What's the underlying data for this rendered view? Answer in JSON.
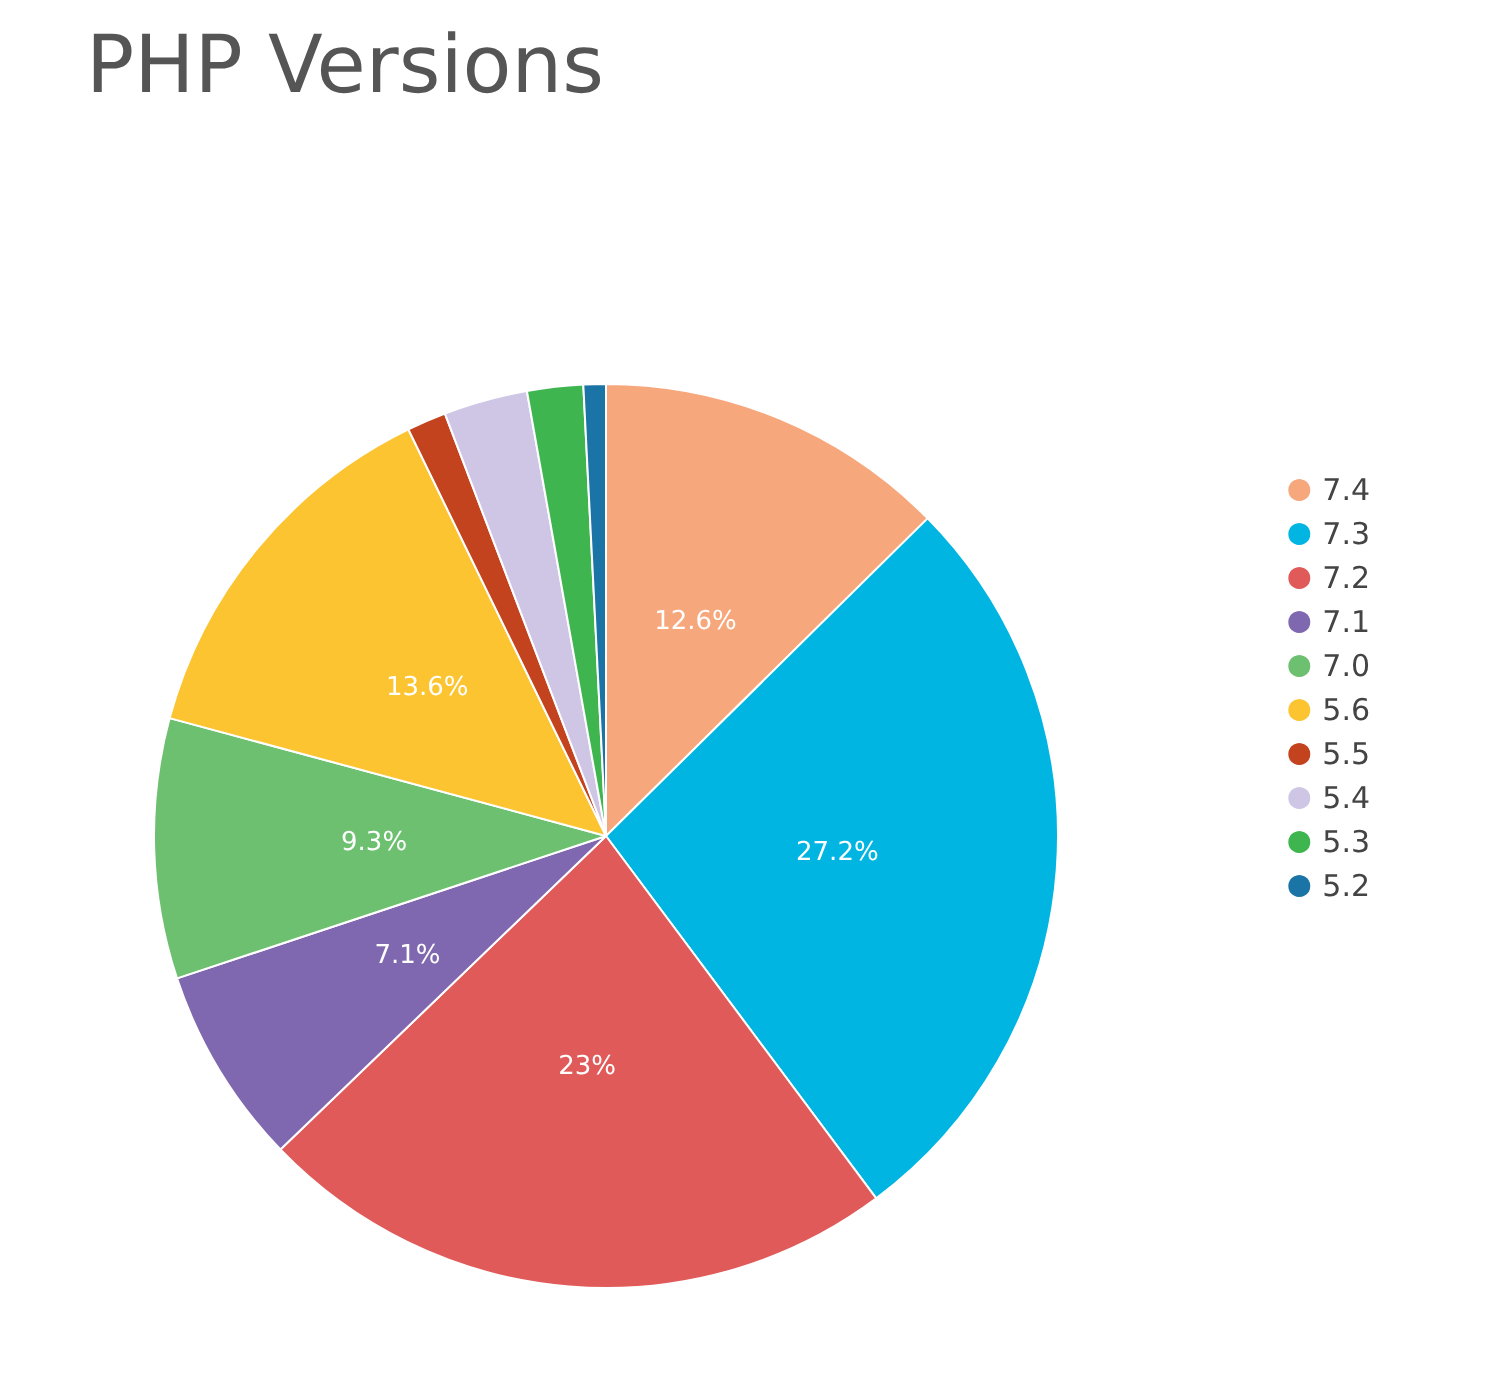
{
  "chart_data": {
    "type": "pie",
    "title": "PHP Versions",
    "categories": [
      "7.4",
      "7.3",
      "7.2",
      "7.1",
      "7.0",
      "5.6",
      "5.5",
      "5.4",
      "5.3",
      "5.2"
    ],
    "values": [
      12.6,
      27.2,
      23,
      7.1,
      9.3,
      13.6,
      1.4,
      3.0,
      2.0,
      0.8
    ],
    "colors": [
      "#f7a77c",
      "#00b5e2",
      "#e05a5a",
      "#8068b0",
      "#6cc070",
      "#fcc431",
      "#c4431f",
      "#cfc6e6",
      "#3fb550",
      "#1a74a6"
    ],
    "value_labels": [
      "12.6%",
      "27.2%",
      "23%",
      "7.1%",
      "9.3%",
      "13.6%",
      null,
      null,
      null,
      null
    ],
    "legend": "right"
  }
}
